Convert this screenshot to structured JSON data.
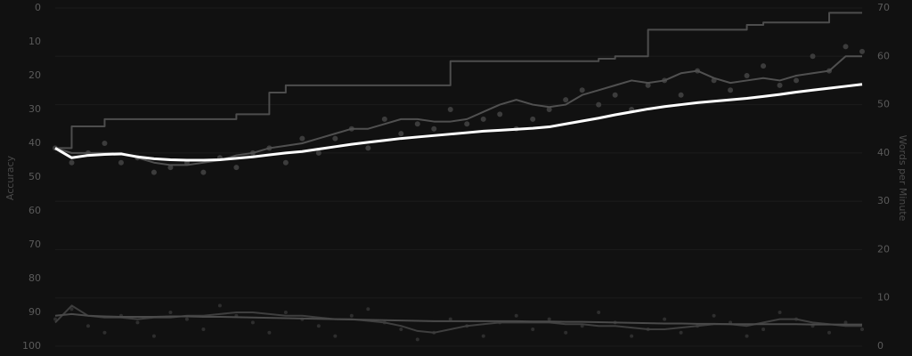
{
  "chart_data": {
    "type": "combo",
    "y_title": "Accuracy",
    "y2_title": "Words per Minute",
    "ylim": [
      100,
      0
    ],
    "yticks": [
      0,
      10,
      20,
      30,
      40,
      50,
      60,
      70,
      80,
      90,
      100
    ],
    "y2lim": [
      0,
      70
    ],
    "y2ticks": [
      0,
      10,
      20,
      30,
      40,
      50,
      60,
      70
    ],
    "grid": true,
    "series": [
      {
        "type": "scatter",
        "axis": "y2",
        "color": "#3c3c3c",
        "values": [
          41,
          38,
          40,
          42,
          38,
          39,
          36,
          37,
          38,
          36,
          39,
          37,
          40,
          41,
          38,
          43,
          40,
          43,
          45,
          41,
          47,
          44,
          46,
          45,
          49,
          46,
          47,
          48,
          45,
          47,
          49,
          51,
          53,
          50,
          52,
          49,
          54,
          55,
          52,
          57,
          55,
          53,
          56,
          58,
          54,
          55,
          60,
          57,
          62,
          61
        ]
      },
      {
        "type": "step",
        "axis": "y2",
        "color": "#4d4d4d",
        "values": [
          41,
          45.5,
          45.5,
          47,
          47,
          47,
          47,
          47,
          47,
          47,
          47,
          48,
          48,
          52.5,
          54,
          54,
          54,
          54,
          54,
          54,
          54,
          54,
          54,
          54,
          59,
          59,
          59,
          59,
          59,
          59,
          59,
          59,
          59,
          59.5,
          60,
          60,
          65.5,
          65.5,
          65.5,
          65.5,
          65.5,
          65.5,
          66.5,
          67,
          67,
          67,
          67,
          69,
          69,
          69
        ]
      },
      {
        "type": "line",
        "axis": "y2",
        "color": "#505050",
        "values": [
          41,
          40,
          40,
          40,
          40,
          39,
          38,
          37.5,
          37.5,
          38,
          38.5,
          39.5,
          40,
          41,
          41.5,
          42,
          43,
          44,
          45,
          45,
          46,
          47,
          47,
          46.5,
          46.5,
          47,
          48.5,
          50,
          51,
          50,
          49.5,
          50,
          52,
          53,
          54,
          55,
          54.5,
          55,
          56.5,
          57,
          55.5,
          54.5,
          55,
          55.5,
          55,
          56,
          56.5,
          57,
          60,
          60
        ]
      },
      {
        "type": "line",
        "axis": "y2",
        "color": "#ffffff",
        "values": [
          41,
          39,
          39.5,
          39.7,
          39.8,
          39.2,
          38.8,
          38.6,
          38.5,
          38.5,
          38.6,
          38.9,
          39.2,
          39.6,
          40,
          40.3,
          40.8,
          41.3,
          41.8,
          42.2,
          42.6,
          43,
          43.3,
          43.6,
          43.9,
          44.2,
          44.5,
          44.7,
          44.9,
          45.1,
          45.4,
          46,
          46.6,
          47.2,
          47.9,
          48.5,
          49.1,
          49.6,
          50,
          50.4,
          50.7,
          51,
          51.3,
          51.7,
          52.1,
          52.6,
          53,
          53.4,
          53.8,
          54.2
        ]
      },
      {
        "type": "scatter",
        "axis": "y",
        "color": "#2e2e2e",
        "values": [
          92,
          89,
          94,
          96,
          91,
          93,
          97,
          90,
          92,
          95,
          88,
          91,
          93,
          96,
          90,
          92,
          94,
          97,
          91,
          89,
          93,
          95,
          98,
          96,
          92,
          94,
          97,
          93,
          91,
          95,
          92,
          96,
          94,
          90,
          93,
          97,
          95,
          92,
          96,
          94,
          91,
          93,
          97,
          95,
          90,
          92,
          94,
          96,
          93,
          95
        ]
      },
      {
        "type": "line",
        "axis": "y",
        "color": "#3e3e3e",
        "values": [
          93,
          88,
          91,
          91.5,
          91.5,
          92,
          91.5,
          91.5,
          91,
          91,
          90.5,
          90,
          90,
          90.5,
          91,
          91,
          91.5,
          92,
          92,
          92.5,
          93,
          94,
          95.5,
          96,
          95,
          94,
          93.5,
          93,
          93,
          93,
          93,
          93.5,
          93.5,
          94,
          94,
          94.5,
          95,
          95,
          94.5,
          94,
          93.5,
          93.5,
          94,
          93,
          92,
          92,
          93,
          93.5,
          94,
          94
        ]
      },
      {
        "type": "line",
        "axis": "y",
        "color": "#4a4a4a",
        "values": [
          91,
          90.5,
          91,
          91.2,
          91.3,
          91.3,
          91.3,
          91.2,
          91.2,
          91.3,
          91.3,
          91.4,
          91.5,
          91.6,
          91.7,
          91.8,
          91.9,
          92,
          92.1,
          92.2,
          92.3,
          92.4,
          92.5,
          92.6,
          92.6,
          92.6,
          92.6,
          92.6,
          92.6,
          92.7,
          92.7,
          92.8,
          92.8,
          92.9,
          93,
          93.1,
          93.2,
          93.3,
          93.3,
          93.4,
          93.4,
          93.5,
          93.5,
          93.5,
          93.5,
          93.5,
          93.6,
          93.6,
          93.6,
          93.6
        ]
      }
    ]
  }
}
